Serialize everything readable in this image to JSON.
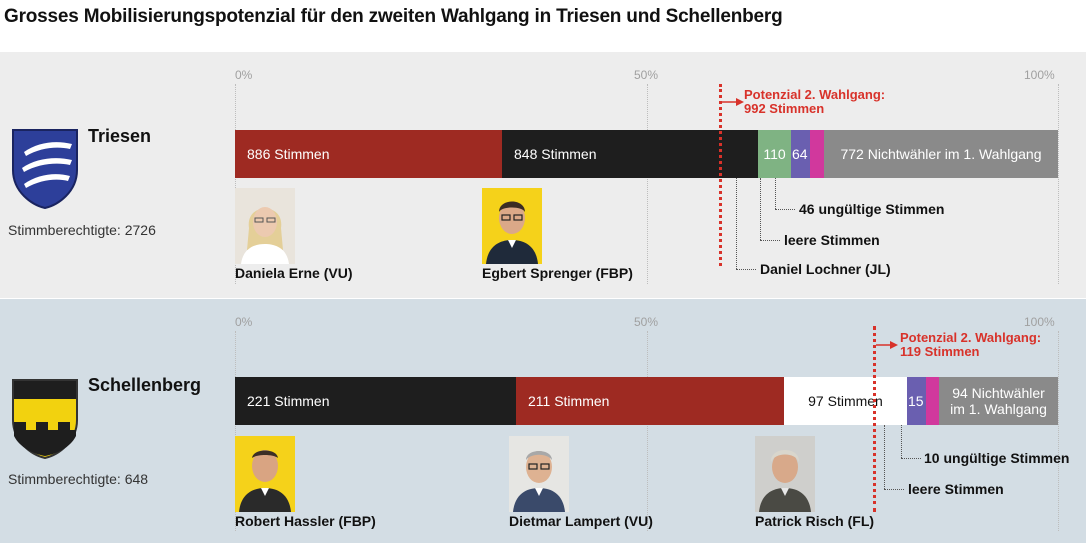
{
  "title": "Grosses Mobilisierungspotenzial für den zweiten Wahlgang in Triesen und Schellenberg",
  "axis_ticks": [
    "0%",
    "50%",
    "100%"
  ],
  "colors": {
    "vu": "#9e2a22",
    "fbp": "#1e1e1e",
    "jl": "#7fb383",
    "fl": "#ffffff",
    "leere": "#6a5fb0",
    "ungueltig": "#d1389d",
    "nichtwaehler": "#8a8a8a",
    "potential": "#d8322a"
  },
  "chart_data": [
    {
      "type": "bar",
      "orientation": "horizontal-stacked",
      "municipality": "Triesen",
      "eligible_label": "Stimmberechtigte: 2726",
      "eligible": 2726,
      "xlim": [
        0,
        100
      ],
      "segments": [
        {
          "key": "vu",
          "value": 886,
          "label": "886 Stimmen"
        },
        {
          "key": "fbp",
          "value": 848,
          "label": "848 Stimmen"
        },
        {
          "key": "jl",
          "value": 110,
          "label": "110"
        },
        {
          "key": "leere",
          "value": 64,
          "label": "64"
        },
        {
          "key": "ungueltig",
          "value": 46,
          "label": ""
        },
        {
          "key": "nichtwaehler",
          "value": 772,
          "label": "772 Nichtwähler im 1. Wahlgang"
        }
      ],
      "potential": {
        "line1": "Potenzial 2. Wahlgang:",
        "line2": "992 Stimmen",
        "value": 992
      },
      "callouts": [
        "46 ungültige Stimmen",
        "leere Stimmen",
        "Daniel Lochner (JL)"
      ],
      "candidates": [
        {
          "name": "Daniela Erne (VU)",
          "photo": "woman-portrait-light-bg"
        },
        {
          "name": "Egbert Sprenger (FBP)",
          "photo": "man-portrait-yellow-bg"
        }
      ]
    },
    {
      "type": "bar",
      "orientation": "horizontal-stacked",
      "municipality": "Schellenberg",
      "eligible_label": "Stimmberechtigte: 648",
      "eligible": 648,
      "xlim": [
        0,
        100
      ],
      "segments": [
        {
          "key": "fbp",
          "value": 221,
          "label": "221 Stimmen"
        },
        {
          "key": "vu",
          "value": 211,
          "label": "211 Stimmen"
        },
        {
          "key": "fl",
          "value": 97,
          "label": "97 Stimmen"
        },
        {
          "key": "leere",
          "value": 15,
          "label": "15"
        },
        {
          "key": "ungueltig",
          "value": 10,
          "label": ""
        },
        {
          "key": "nichtwaehler",
          "value": 94,
          "label": "94 Nichtwähler\nim 1. Wahlgang"
        }
      ],
      "potential": {
        "line1": "Potenzial 2. Wahlgang:",
        "line2": "119 Stimmen",
        "value": 119
      },
      "callouts": [
        "10 ungültige Stimmen",
        "leere Stimmen"
      ],
      "candidates": [
        {
          "name": "Robert Hassler (FBP)",
          "photo": "man-portrait-yellow-bg"
        },
        {
          "name": "Dietmar Lampert (VU)",
          "photo": "man-portrait-light-bg"
        },
        {
          "name": "Patrick Risch (FL)",
          "photo": "man-portrait-light-bg"
        }
      ]
    }
  ]
}
